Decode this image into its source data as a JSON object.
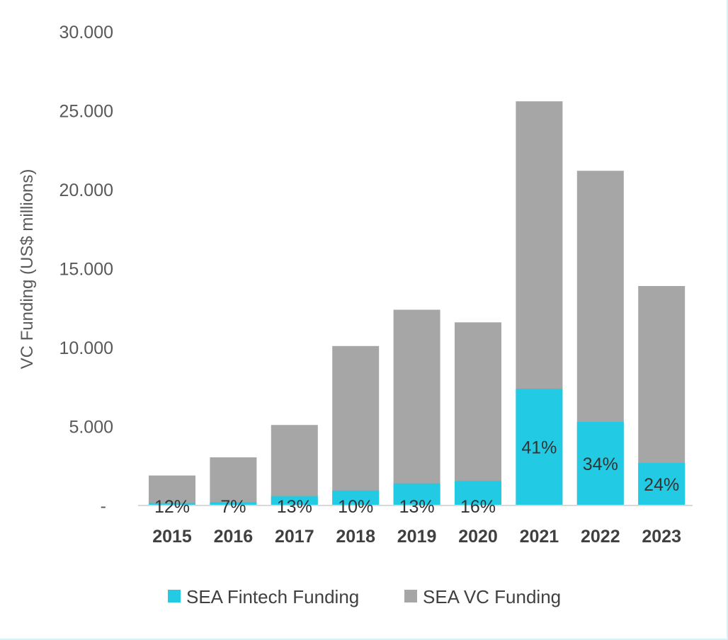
{
  "chart_data": {
    "type": "bar",
    "title": "",
    "xlabel": "",
    "ylabel": "VC Funding (US$ millions)",
    "ylim": [
      0,
      30000
    ],
    "yticks": [
      "-",
      "5.000",
      "10.000",
      "15.000",
      "20.000",
      "25.000",
      "30.000"
    ],
    "categories": [
      "2015",
      "2016",
      "2017",
      "2018",
      "2019",
      "2020",
      "2021",
      "2022",
      "2023"
    ],
    "series": [
      {
        "name": "SEA VC Funding",
        "color": "#a6a6a6",
        "values": [
          1900,
          3050,
          5100,
          10100,
          12400,
          11600,
          25600,
          21200,
          13900
        ]
      },
      {
        "name": "SEA Fintech Funding",
        "color": "#22cbe3",
        "values": [
          150,
          200,
          600,
          950,
          1400,
          1550,
          7400,
          5300,
          2700
        ]
      }
    ],
    "data_labels": [
      "12%",
      "7%",
      "13%",
      "10%",
      "13%",
      "16%",
      "41%",
      "34%",
      "24%"
    ],
    "legend": {
      "placement": "bottom",
      "entries": [
        "SEA Fintech Funding",
        "SEA VC Funding"
      ]
    },
    "grid": false
  }
}
